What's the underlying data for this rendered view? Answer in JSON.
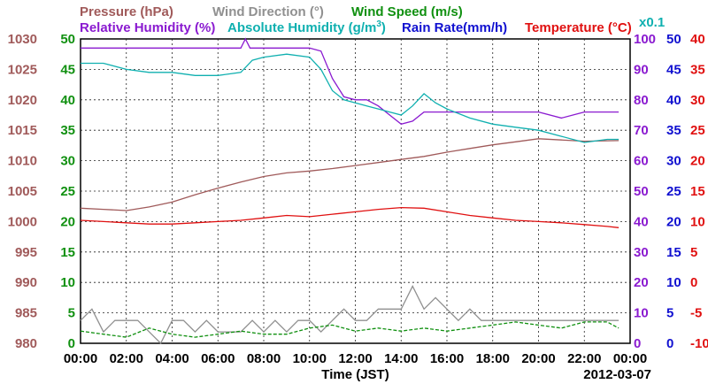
{
  "chart_data": {
    "type": "line",
    "date": "2012-03-07",
    "xlabel": "Time (JST)",
    "x_ticks": [
      "00:00",
      "02:00",
      "04:00",
      "06:00",
      "08:00",
      "10:00",
      "12:00",
      "14:00",
      "16:00",
      "18:00",
      "20:00",
      "22:00",
      "00:00"
    ],
    "xlim": [
      0,
      24
    ],
    "grid": true,
    "legend": {
      "row1": [
        {
          "text": "Pressure (hPa)",
          "color": "#a05a5a"
        },
        {
          "text": "Wind Direction (°)",
          "color": "#909090"
        },
        {
          "text": "Wind Speed (m/s)",
          "color": "#109010"
        }
      ],
      "row2": [
        {
          "text": "Relative Humidity (%)",
          "color": "#8a1ad0"
        },
        {
          "text": "Absolute Humidity (g/m",
          "sup": "3",
          "tail": ")",
          "color": "#10b0b0"
        },
        {
          "text": "Rain Rate(mm/h)",
          "color": "#1010d0"
        },
        {
          "text": "Temperature (°C)",
          "color": "#e01010"
        }
      ],
      "rain_multiplier": "x0.1"
    },
    "axes": {
      "pressure": {
        "color": "#a05a5a",
        "ylim": [
          980,
          1030
        ],
        "ticks": [
          "1030",
          "1025",
          "1020",
          "1015",
          "1010",
          "1005",
          "1000",
          "995",
          "990",
          "985",
          "980"
        ]
      },
      "wind_speed": {
        "color": "#109010",
        "ylim": [
          0,
          50
        ],
        "ticks": [
          "50",
          "45",
          "40",
          "35",
          "30",
          "25",
          "20",
          "15",
          "10",
          "5",
          "0"
        ]
      },
      "relative_humidity": {
        "color": "#8a1ad0",
        "ylim": [
          0,
          100
        ],
        "ticks": [
          "100",
          "90",
          "80",
          "70",
          "60",
          "50",
          "40",
          "30",
          "20",
          "10",
          "0"
        ]
      },
      "rain_rate": {
        "color": "#1010d0",
        "ylim": [
          0,
          50
        ],
        "ticks": [
          "50",
          "45",
          "40",
          "35",
          "30",
          "25",
          "20",
          "15",
          "10",
          "5",
          "0"
        ]
      },
      "temperature": {
        "color": "#e01010",
        "ylim": [
          -10,
          40
        ],
        "ticks": [
          "40",
          "35",
          "30",
          "25",
          "20",
          "15",
          "10",
          "5",
          "0",
          "-5",
          "-10"
        ]
      }
    },
    "series": [
      {
        "name": "Pressure (hPa)",
        "axis": "pressure",
        "color": "#a05a5a",
        "x": [
          0,
          1,
          2,
          3,
          4,
          5,
          6,
          7,
          8,
          9,
          10,
          11,
          12,
          13,
          14,
          15,
          16,
          17,
          18,
          19,
          20,
          21,
          22,
          23.5
        ],
        "y": [
          1002.2,
          1002.0,
          1001.8,
          1002.4,
          1003.2,
          1004.4,
          1005.5,
          1006.5,
          1007.4,
          1008.0,
          1008.3,
          1008.7,
          1009.2,
          1009.7,
          1010.2,
          1010.7,
          1011.4,
          1012.0,
          1012.6,
          1013.1,
          1013.6,
          1013.4,
          1013.2,
          1013.3
        ]
      },
      {
        "name": "Wind Direction (°)",
        "axis": "wind_direction",
        "color": "#909090",
        "x": [
          0,
          0.5,
          1,
          1.5,
          2,
          2.5,
          3,
          3.5,
          4,
          4.5,
          5,
          5.5,
          6,
          6.5,
          7,
          7.5,
          8,
          8.5,
          9,
          9.5,
          10,
          10.5,
          11,
          11.5,
          12,
          12.5,
          13,
          13.5,
          14,
          14.5,
          15,
          15.5,
          16,
          16.5,
          17,
          17.5,
          18,
          18.5,
          19,
          19.5,
          20,
          20.5,
          21,
          21.5,
          22,
          22.5,
          23,
          23.5
        ],
        "y": [
          90,
          135,
          45,
          90,
          90,
          90,
          45,
          0,
          90,
          90,
          45,
          90,
          45,
          45,
          45,
          90,
          45,
          90,
          45,
          90,
          90,
          45,
          90,
          135,
          90,
          90,
          135,
          135,
          135,
          225,
          135,
          180,
          135,
          90,
          135,
          90,
          90,
          90,
          90,
          90,
          90,
          90,
          90,
          90,
          90,
          90,
          90,
          90
        ]
      },
      {
        "name": "Wind Speed (m/s)",
        "axis": "wind_speed",
        "color": "#109010",
        "x": [
          0,
          1,
          2,
          3,
          4,
          5,
          6,
          7,
          8,
          9,
          10,
          11,
          12,
          13,
          14,
          15,
          16,
          17,
          18,
          19,
          20,
          21,
          22,
          23,
          23.5
        ],
        "y": [
          2.0,
          1.5,
          1.0,
          2.5,
          1.5,
          1.0,
          1.5,
          2.0,
          1.5,
          1.5,
          2.5,
          3.0,
          2.0,
          2.5,
          2.0,
          2.5,
          2.0,
          2.5,
          3.0,
          3.5,
          3.0,
          2.5,
          3.5,
          3.5,
          2.5
        ]
      },
      {
        "name": "Relative Humidity (%)",
        "axis": "relative_humidity",
        "color": "#8a1ad0",
        "x": [
          0,
          2,
          4,
          6,
          7,
          7.2,
          7.4,
          8,
          9,
          10,
          10.5,
          11,
          11.5,
          12,
          12.5,
          13,
          13.5,
          14,
          14.5,
          15,
          16,
          18,
          20,
          21,
          22,
          23.5
        ],
        "y": [
          97,
          97,
          97,
          97,
          97,
          100,
          97,
          97,
          97,
          97,
          96,
          87,
          81,
          80,
          80,
          78,
          75,
          72,
          73,
          76,
          76,
          76,
          76,
          74,
          76,
          76
        ]
      },
      {
        "name": "Absolute Humidity (g/m3)",
        "axis": "relative_humidity",
        "color": "#10b0b0",
        "x": [
          0,
          1,
          2,
          3,
          4,
          5,
          6,
          7,
          7.5,
          8,
          9,
          10,
          10.5,
          11,
          11.5,
          12,
          12.5,
          13,
          13.5,
          14,
          14.5,
          15,
          15.5,
          16,
          17,
          18,
          19,
          20,
          21,
          22,
          23,
          23.5
        ],
        "y": [
          92,
          92,
          90,
          89,
          89,
          88,
          88,
          89,
          93,
          94,
          95,
          94,
          90,
          83,
          80,
          79,
          78,
          77,
          76,
          75,
          78,
          82,
          79,
          77,
          74,
          72,
          71,
          70,
          68,
          66,
          67,
          67
        ]
      },
      {
        "name": "Temperature (°C)",
        "axis": "temperature",
        "color": "#e01010",
        "x": [
          0,
          1,
          2,
          3,
          4,
          5,
          6,
          7,
          8,
          9,
          10,
          11,
          12,
          13,
          14,
          15,
          16,
          17,
          18,
          19,
          20,
          21,
          22,
          23,
          23.5
        ],
        "y": [
          10.2,
          10.0,
          9.8,
          9.6,
          9.6,
          9.8,
          10.0,
          10.2,
          10.6,
          11.0,
          10.8,
          11.2,
          11.6,
          12.0,
          12.3,
          12.2,
          11.6,
          11.0,
          10.6,
          10.2,
          10.0,
          9.8,
          9.5,
          9.2,
          9.0
        ]
      }
    ]
  }
}
